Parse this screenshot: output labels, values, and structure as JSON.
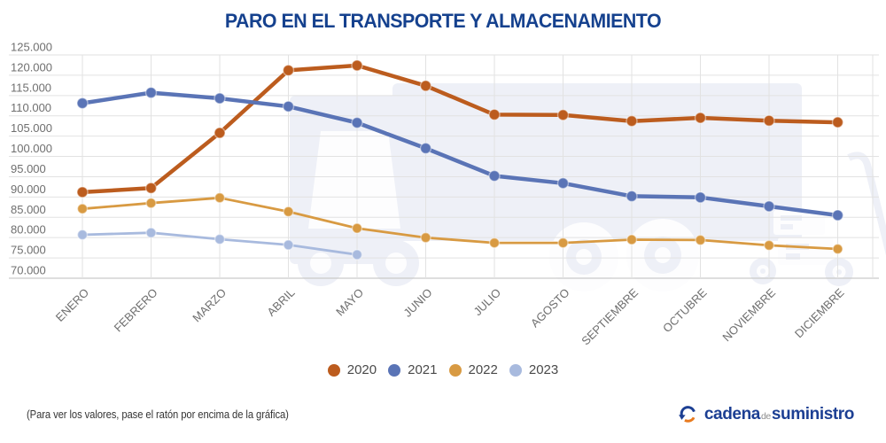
{
  "title": "PARO EN EL TRANSPORTE Y ALMACENAMIENTO",
  "chart_data": {
    "type": "line",
    "title": "PARO EN EL TRANSPORTE Y ALMACENAMIENTO",
    "categories": [
      "ENERO",
      "FEBRERO",
      "MARZO",
      "ABRIL",
      "MAYO",
      "JUNIO",
      "JULIO",
      "AGOSTO",
      "SEPTIEMBRE",
      "OCTUBRE",
      "NOVIEMBRE",
      "DICIEMBRE"
    ],
    "series": [
      {
        "name": "2020",
        "color": "#bc5c1e",
        "line_width": 4.5,
        "point_radius": 6,
        "values": [
          91200,
          92200,
          105800,
          121200,
          122400,
          117400,
          110300,
          110200,
          108700,
          109500,
          108800,
          108400
        ]
      },
      {
        "name": "2021",
        "color": "#5a74b6",
        "line_width": 4.5,
        "point_radius": 6,
        "values": [
          113100,
          115700,
          114300,
          112300,
          108300,
          102000,
          95200,
          93400,
          90200,
          89900,
          87700,
          85500
        ]
      },
      {
        "name": "2022",
        "color": "#d89a42",
        "line_width": 2.8,
        "point_radius": 5.5,
        "values": [
          87100,
          88500,
          89800,
          86400,
          82300,
          80000,
          78700,
          78700,
          79500,
          79400,
          78100,
          77200
        ]
      },
      {
        "name": "2023",
        "color": "#a8bade",
        "line_width": 2.8,
        "point_radius": 5.5,
        "values": [
          80700,
          81200,
          79600,
          78200,
          75800,
          null,
          null,
          null,
          null,
          null,
          null,
          null
        ]
      }
    ],
    "ylim": [
      70000,
      125000
    ],
    "ytick_step": 5000,
    "ytick_labels": [
      "125.000",
      "120.000",
      "115.000",
      "110.000",
      "105.000",
      "100.000",
      "95.000",
      "90.000",
      "85.000",
      "80.000",
      "75.000",
      "70.000"
    ],
    "grid": true,
    "legend_position": "bottom",
    "xlabel": "",
    "ylabel": ""
  },
  "footer": {
    "note": "(Para ver los valores, pase el ratón por encima de la gráfica)"
  },
  "logo": {
    "word1": "cadena",
    "word2": "de",
    "word3": "suministro"
  },
  "colors": {
    "title": "#15418e",
    "grid": "#e2e2e2",
    "axis": "#c9c9c9",
    "tick_text": "#6f6f6f",
    "legend_text": "#4a4a4a",
    "watermark": "#eef0f7",
    "logo_blue": "#1c3f93",
    "logo_orange": "#e87a1e"
  }
}
